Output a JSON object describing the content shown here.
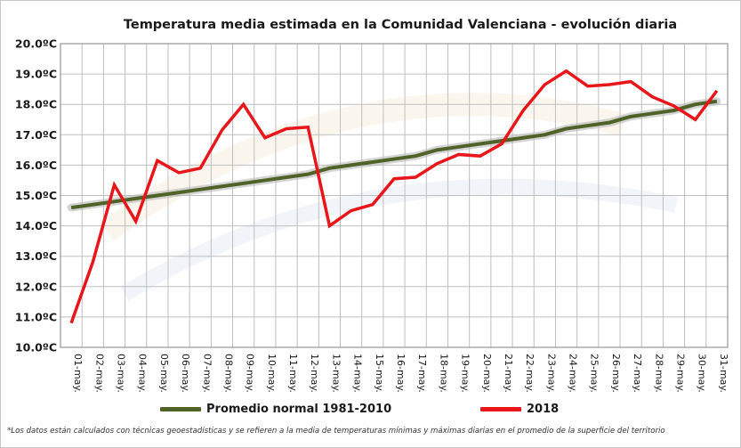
{
  "chart_data": {
    "type": "line",
    "title": "Temperatura media estimada en la Comunidad Valenciana - evolución diaria",
    "categories": [
      "01-may.",
      "02-may.",
      "03-may.",
      "04-may.",
      "05-may.",
      "06-may.",
      "07-may.",
      "08-may.",
      "09-may.",
      "10-may.",
      "11-may.",
      "12-may.",
      "13-may.",
      "14-may.",
      "15-may.",
      "16-may.",
      "17-may.",
      "18-may.",
      "19-may.",
      "20-may.",
      "21-may.",
      "22-may.",
      "23-may.",
      "24-may.",
      "25-may.",
      "26-may.",
      "27-may.",
      "28-may.",
      "29-may.",
      "30-may.",
      "31-may."
    ],
    "yticks": [
      "10.0ºC",
      "11.0ºC",
      "12.0ºC",
      "13.0ºC",
      "14.0ºC",
      "15.0ºC",
      "16.0ºC",
      "17.0ºC",
      "18.0ºC",
      "19.0ºC",
      "20.0ºC"
    ],
    "ylim": [
      10,
      20
    ],
    "grid": true,
    "legend_position": "bottom",
    "series": [
      {
        "name": "Promedio normal 1981-2010",
        "color": "#4f6228",
        "values": [
          14.6,
          14.7,
          14.8,
          14.9,
          15.0,
          15.1,
          15.2,
          15.3,
          15.4,
          15.5,
          15.6,
          15.7,
          15.9,
          16.0,
          16.1,
          16.2,
          16.3,
          16.5,
          16.6,
          16.7,
          16.8,
          16.9,
          17.0,
          17.2,
          17.3,
          17.4,
          17.6,
          17.7,
          17.8,
          18.0,
          18.1
        ]
      },
      {
        "name": "2018",
        "color": "#e8161b",
        "values": [
          10.8,
          12.8,
          15.35,
          14.15,
          16.15,
          15.75,
          15.9,
          17.15,
          18.0,
          16.9,
          17.2,
          17.25,
          14.0,
          14.5,
          14.7,
          15.55,
          15.6,
          16.05,
          16.35,
          16.3,
          16.7,
          17.8,
          18.65,
          19.1,
          18.6,
          18.65,
          18.75,
          18.25,
          17.95,
          17.5,
          18.45
        ]
      }
    ]
  },
  "footnote": "*Los datos están calculados con técnicas geoestadísticas y se refieren a la media de temperaturas mínimas y máximas diarias en el promedio de la superficie del territorio"
}
